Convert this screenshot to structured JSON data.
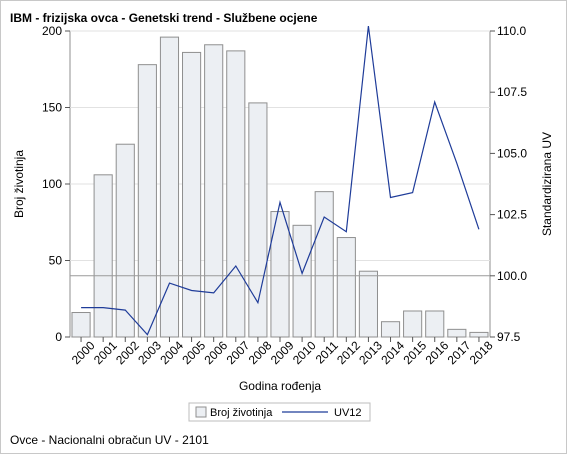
{
  "title": "IBM - frizijska ovca - Genetski trend - Službene ocjene",
  "footnote": "Ovce - Nacionalni obračun UV - 2101",
  "colors": {
    "bar_fill": "#eceff3",
    "bar_stroke": "#8f8f8f",
    "line": "#1f3c99",
    "gridline": "#e2e2e2",
    "refline": "#9a9a9a"
  },
  "chart_data": {
    "type": "bar",
    "xlabel": "Godina rođenja",
    "ylabel": "Broj životinja",
    "y2label": "Standardizirana UV",
    "ylim": [
      0,
      200
    ],
    "y2lim": [
      97.5,
      110.0
    ],
    "y_ticks": [
      "0",
      "50",
      "100",
      "150",
      "200"
    ],
    "y2_ticks": [
      "97.5",
      "100.0",
      "102.5",
      "105.0",
      "107.5",
      "110.0"
    ],
    "categories": [
      "2000",
      "2001",
      "2002",
      "2003",
      "2004",
      "2005",
      "2006",
      "2007",
      "2008",
      "2009",
      "2010",
      "2011",
      "2012",
      "2013",
      "2014",
      "2015",
      "2016",
      "2017",
      "2018"
    ],
    "series": [
      {
        "name": "Broj životinja",
        "type": "bar",
        "axis": "left",
        "values": [
          16,
          106,
          126,
          178,
          196,
          186,
          191,
          187,
          153,
          82,
          73,
          95,
          65,
          43,
          10,
          17,
          17,
          5,
          3
        ]
      },
      {
        "name": "UV12",
        "type": "line",
        "axis": "right",
        "values": [
          98.7,
          98.7,
          98.6,
          97.6,
          99.7,
          99.4,
          99.3,
          100.4,
          98.9,
          103.0,
          100.1,
          102.4,
          101.8,
          110.2,
          103.2,
          103.4,
          107.1,
          104.6,
          101.9
        ]
      }
    ],
    "reference_line": {
      "axis": "right",
      "value": 100.0
    },
    "grid": true,
    "legend_position": "bottom"
  }
}
